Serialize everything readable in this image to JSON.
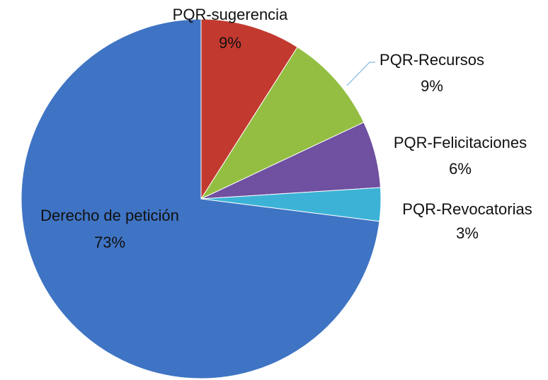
{
  "chart_data": {
    "type": "pie",
    "categories": [
      "PQR-sugerencia",
      "PQR-Recursos",
      "PQR-Felicitaciones",
      "PQR-Revocatorias",
      "Derecho de petición"
    ],
    "values": [
      9,
      9,
      6,
      3,
      73
    ],
    "value_labels": [
      "9%",
      "9%",
      "6%",
      "3%",
      "73%"
    ],
    "colors": [
      "#c2392f",
      "#93be42",
      "#7050a0",
      "#3cb3d6",
      "#3f74c4"
    ]
  }
}
